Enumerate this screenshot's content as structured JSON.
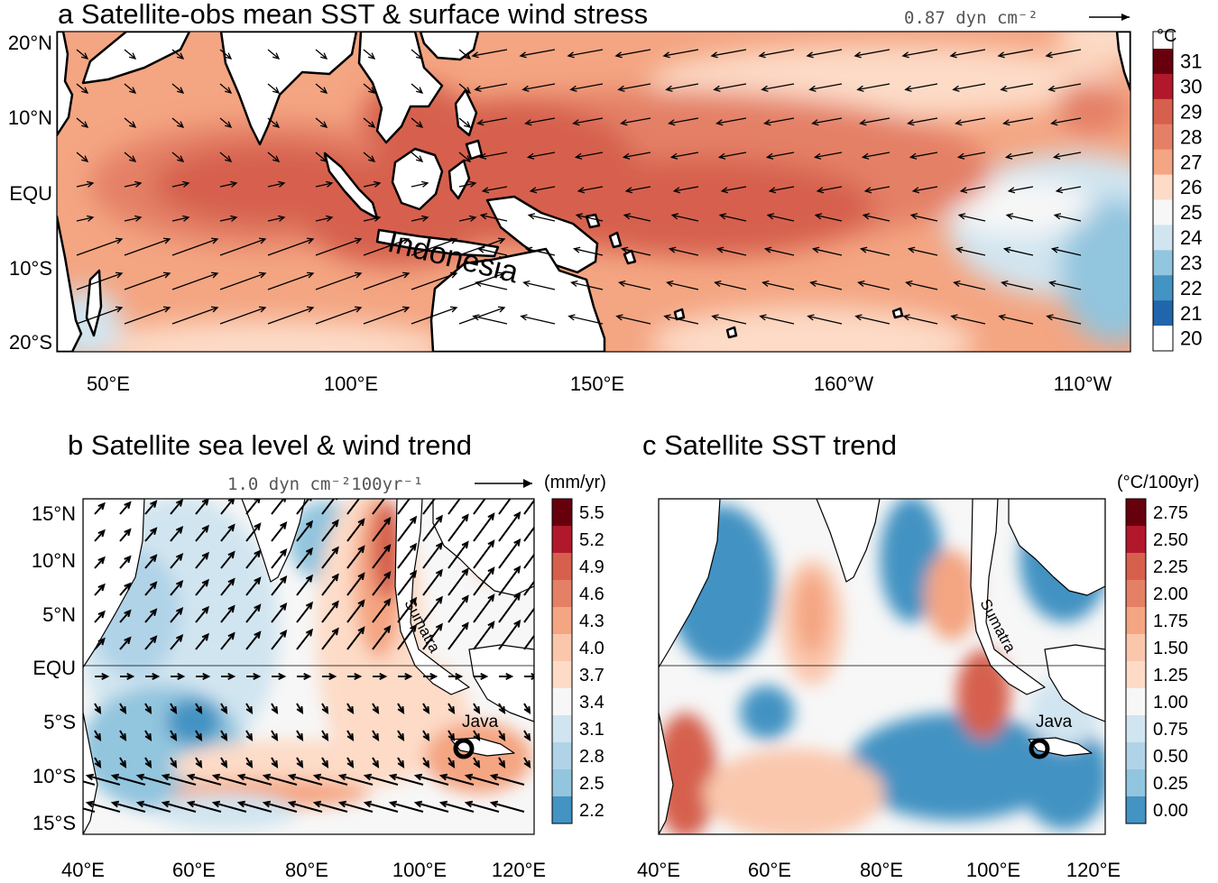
{
  "figure": {
    "panels": [
      {
        "id": "a",
        "title": "a Satellite-obs mean SST & surface wind stress",
        "reference_vector": "0.87 dyn cm⁻²",
        "x_ticks": [
          "50°E",
          "100°E",
          "150°E",
          "160°W",
          "110°W"
        ],
        "y_ticks": [
          "20°N",
          "10°N",
          "EQU",
          "10°S",
          "20°S"
        ],
        "map_labels": [
          "Indonesia"
        ],
        "colorbar": {
          "unit": "°C",
          "levels": [
            "31",
            "30",
            "29",
            "28",
            "27",
            "26",
            "25",
            "24",
            "23",
            "22",
            "21",
            "20"
          ],
          "colors": [
            "#67000d",
            "#b2182b",
            "#d6604d",
            "#e48066",
            "#f4a582",
            "#fddbc7",
            "#f7f7f7",
            "#d1e5f0",
            "#92c5de",
            "#4393c3",
            "#2166ac",
            "#ffffff"
          ]
        }
      },
      {
        "id": "b",
        "title": "b Satellite sea level & wind trend",
        "reference_vector": "1.0 dyn cm⁻²100yr⁻¹",
        "x_ticks": [
          "40°E",
          "60°E",
          "80°E",
          "100°E",
          "120°E"
        ],
        "y_ticks": [
          "15°N",
          "10°N",
          "5°N",
          "EQU",
          "5°S",
          "10°S",
          "15°S"
        ],
        "map_labels": [
          "Sumatra",
          "Java"
        ],
        "colorbar": {
          "unit": "(mm/yr)",
          "levels": [
            "5.5",
            "5.2",
            "4.9",
            "4.6",
            "4.3",
            "4.0",
            "3.7",
            "3.4",
            "3.1",
            "2.8",
            "2.5",
            "2.2"
          ],
          "colors": [
            "#67000d",
            "#b2182b",
            "#d6604d",
            "#e48066",
            "#f4a582",
            "#fac7ad",
            "#fddbc7",
            "#f7f7f7",
            "#d1e5f0",
            "#b0d3e8",
            "#92c5de",
            "#4393c3"
          ]
        }
      },
      {
        "id": "c",
        "title": "c Satellite SST trend",
        "x_ticks": [
          "40°E",
          "60°E",
          "80°E",
          "100°E",
          "120°E"
        ],
        "map_labels": [
          "Sumatra",
          "Java"
        ],
        "colorbar": {
          "unit": "(°C/100yr)",
          "levels": [
            "2.75",
            "2.50",
            "2.25",
            "2.00",
            "1.75",
            "1.50",
            "1.25",
            "1.00",
            "0.75",
            "0.50",
            "0.25",
            "0.00"
          ],
          "colors": [
            "#67000d",
            "#b2182b",
            "#d6604d",
            "#e48066",
            "#f4a582",
            "#fac7ad",
            "#fddbc7",
            "#f7f7f7",
            "#d1e5f0",
            "#b0d3e8",
            "#92c5de",
            "#4393c3"
          ]
        }
      }
    ]
  }
}
